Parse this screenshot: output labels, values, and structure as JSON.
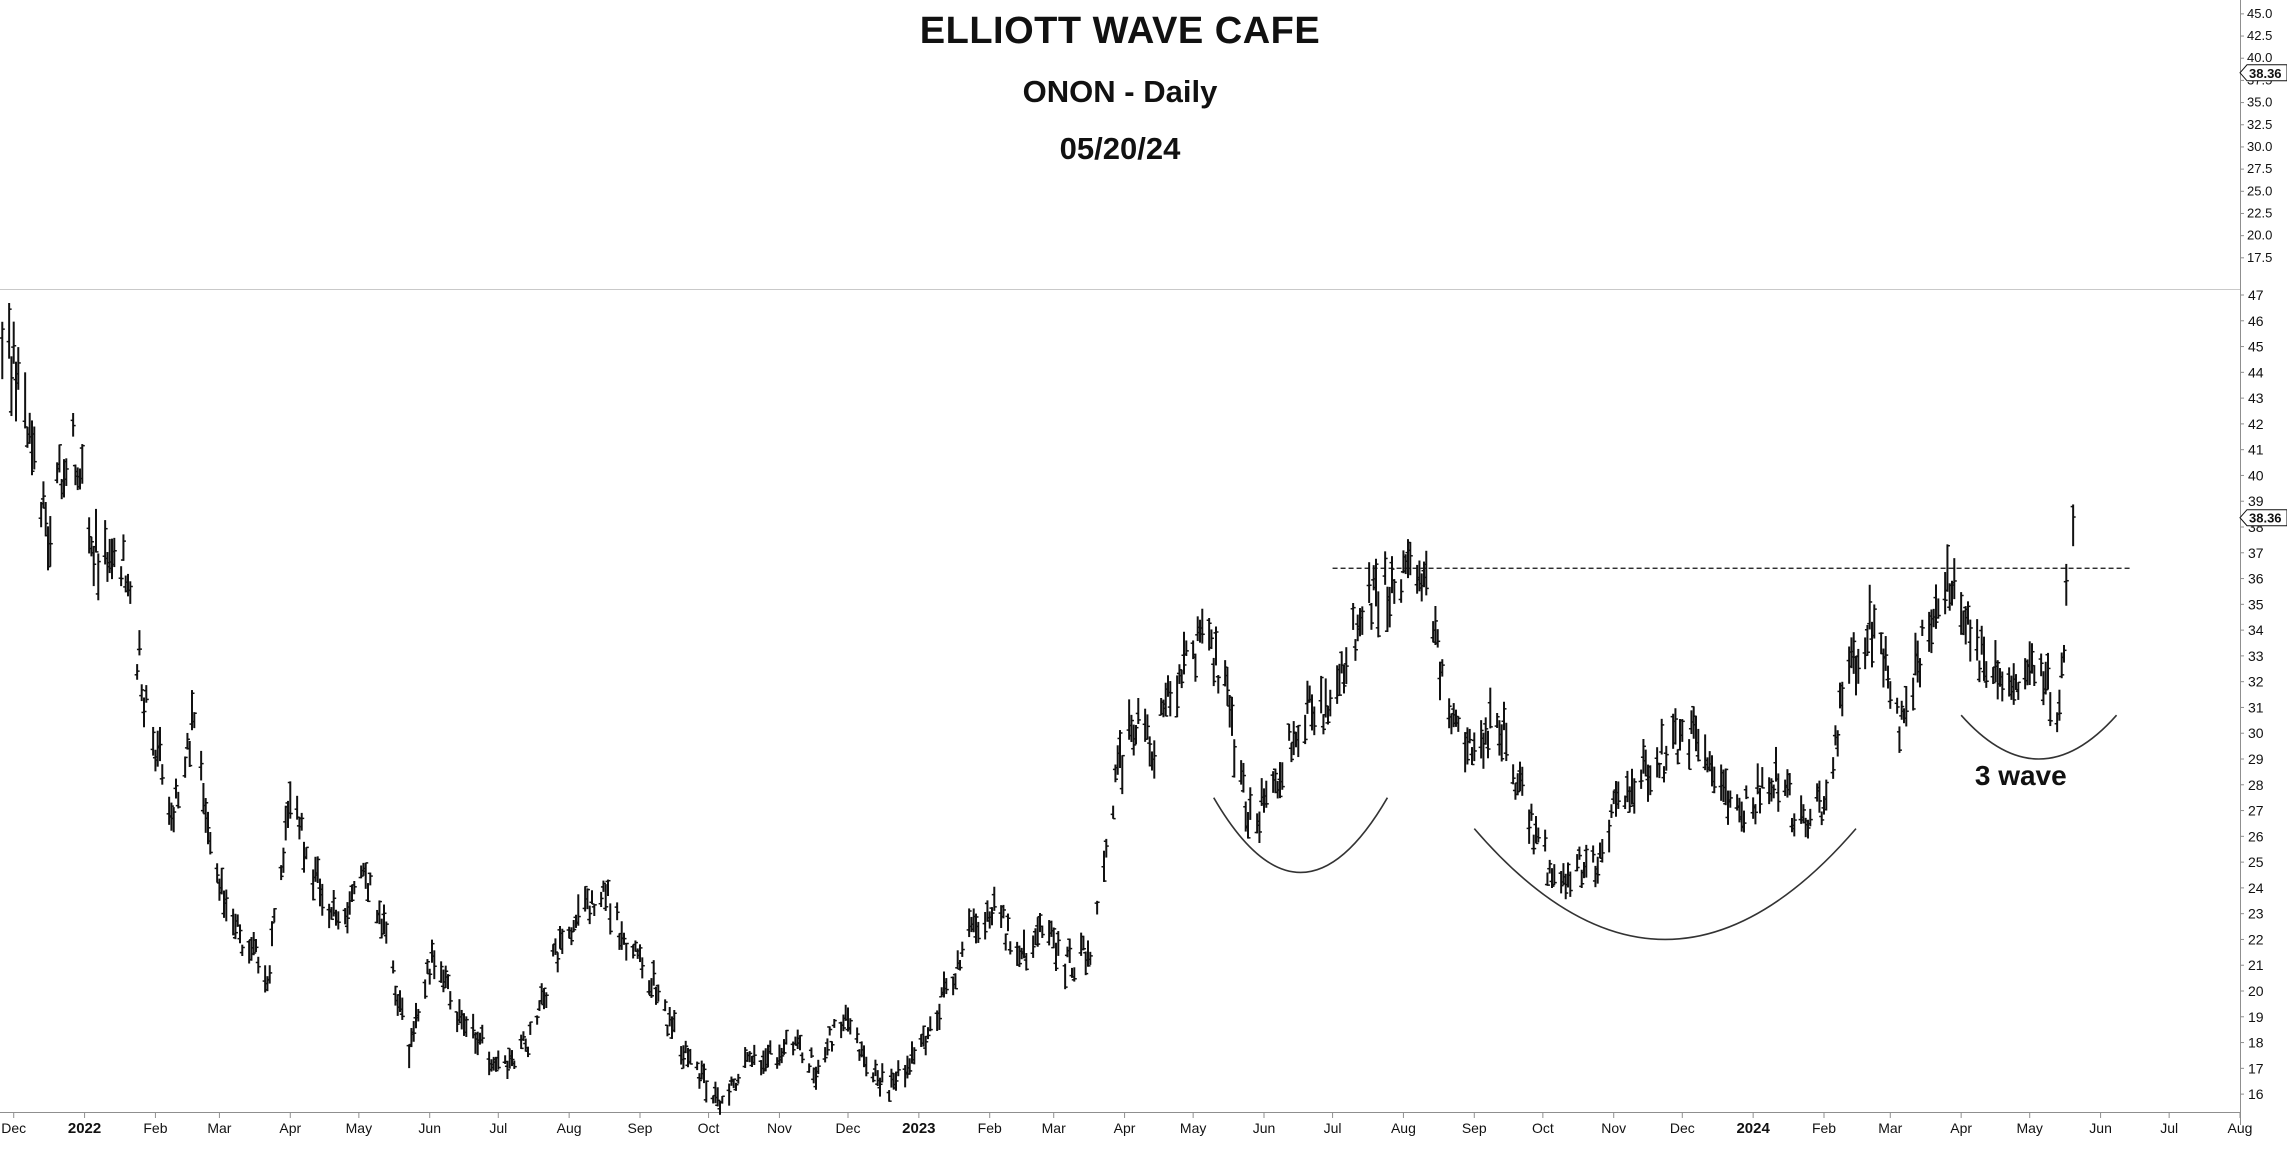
{
  "header": {
    "title": "ELLIOTT WAVE CAFE",
    "subtitle": "ONON - Daily",
    "date": "05/20/24"
  },
  "colors": {
    "background": "#ffffff",
    "bars": "#111111",
    "axis": "#8f8f8f",
    "text": "#111111"
  },
  "chart_data": [
    {
      "type": "scatter",
      "title": "",
      "xlabel": "",
      "ylabel": "",
      "ylim": [
        15,
        46
      ],
      "y_ticks": [
        "45.0",
        "42.5",
        "40.0",
        "37.5",
        "35.0",
        "32.5",
        "30.0",
        "27.5",
        "25.0",
        "22.5",
        "20.0",
        "17.5"
      ],
      "last_price": "38.36",
      "grid": false,
      "x_ticks": [],
      "notes": ""
    },
    {
      "type": "line",
      "title": "",
      "xlabel": "",
      "ylabel": "",
      "ylim": [
        15.5,
        47
      ],
      "x_range": [
        "2021-11-25",
        "2024-08-01"
      ],
      "y_ticks": [
        "47",
        "46",
        "45",
        "44",
        "43",
        "42",
        "41",
        "40",
        "39",
        "38",
        "37",
        "36",
        "35",
        "34",
        "33",
        "32",
        "31",
        "30",
        "29",
        "28",
        "27",
        "26",
        "25",
        "24",
        "23",
        "22",
        "21",
        "20",
        "19",
        "18",
        "17",
        "16"
      ],
      "last_price": "38.36",
      "x_tick_labels": [
        "Dec",
        "2022",
        "Feb",
        "Mar",
        "Apr",
        "May",
        "Jun",
        "Jul",
        "Aug",
        "Sep",
        "Oct",
        "Nov",
        "Dec",
        "2023",
        "Feb",
        "Mar",
        "Apr",
        "May",
        "Jun",
        "Jul",
        "Aug",
        "Sep",
        "Oct",
        "Nov",
        "Dec",
        "2024",
        "Feb",
        "Mar",
        "Apr",
        "May",
        "Jun",
        "Jul",
        "Aug"
      ],
      "x_tick_bold": [
        "2022",
        "2023",
        "2024"
      ],
      "grid": false,
      "series": [
        {
          "x": [
            "2021-11-26",
            "2021-12-06",
            "2021-12-16",
            "2021-12-27",
            "2022-01-06",
            "2022-01-18",
            "2022-01-28",
            "2022-02-08",
            "2022-02-18",
            "2022-03-01",
            "2022-03-11",
            "2022-03-22",
            "2022-04-01",
            "2022-04-12",
            "2022-04-22",
            "2022-05-03",
            "2022-05-12",
            "2022-05-23",
            "2022-06-02",
            "2022-06-13",
            "2022-06-23",
            "2022-07-05",
            "2022-07-14",
            "2022-07-25",
            "2022-08-04",
            "2022-08-15",
            "2022-08-25",
            "2022-09-06",
            "2022-09-15",
            "2022-09-26",
            "2022-10-06",
            "2022-10-17",
            "2022-10-27",
            "2022-11-07",
            "2022-11-17",
            "2022-11-29",
            "2022-12-09",
            "2022-12-20",
            "2023-01-03",
            "2023-01-13",
            "2023-01-25",
            "2023-02-03",
            "2023-02-14",
            "2023-02-24",
            "2023-03-07",
            "2023-03-17",
            "2023-03-23",
            "2023-04-03",
            "2023-04-13",
            "2023-04-24",
            "2023-05-04",
            "2023-05-15",
            "2023-05-25",
            "2023-06-06",
            "2023-06-16",
            "2023-06-28",
            "2023-07-11",
            "2023-07-21",
            "2023-08-01",
            "2023-08-11",
            "2023-08-21",
            "2023-08-31",
            "2023-09-12",
            "2023-09-22",
            "2023-10-03",
            "2023-10-13",
            "2023-10-24",
            "2023-11-03",
            "2023-11-14",
            "2023-11-27",
            "2023-12-07",
            "2023-12-18",
            "2023-12-29",
            "2024-01-10",
            "2024-01-22",
            "2024-02-01",
            "2024-02-12",
            "2024-02-23",
            "2024-03-05",
            "2024-03-15",
            "2024-03-26",
            "2024-04-05",
            "2024-04-16",
            "2024-04-26",
            "2024-05-07",
            "2024-05-13",
            "2024-05-20"
          ],
          "y": [
            45.5,
            43.0,
            38.0,
            41.5,
            37.0,
            36.5,
            31.0,
            27.0,
            30.5,
            24.0,
            22.0,
            20.5,
            27.5,
            24.5,
            22.5,
            24.5,
            22.5,
            17.5,
            21.5,
            19.0,
            18.0,
            17.0,
            18.0,
            21.0,
            23.0,
            24.0,
            22.0,
            20.5,
            18.5,
            17.0,
            15.8,
            17.0,
            17.5,
            18.0,
            17.0,
            19.0,
            17.0,
            16.3,
            18.0,
            20.0,
            22.5,
            23.5,
            21.0,
            22.5,
            21.0,
            21.5,
            25.5,
            30.5,
            29.5,
            32.0,
            33.5,
            32.0,
            26.5,
            27.5,
            30.5,
            31.0,
            34.0,
            35.5,
            36.0,
            35.5,
            30.5,
            29.5,
            30.5,
            27.5,
            25.0,
            24.5,
            25.0,
            27.5,
            28.5,
            29.5,
            30.0,
            28.0,
            27.0,
            28.5,
            26.5,
            27.5,
            32.5,
            34.5,
            30.5,
            33.5,
            35.5,
            34.0,
            32.0,
            32.5,
            32.5,
            30.5,
            38.36
          ]
        }
      ],
      "annotations": [
        {
          "type": "hline",
          "y": 36.4,
          "x_start": "2023-07-01",
          "x_end": "2024-06-15",
          "style": "dashed"
        },
        {
          "type": "arc",
          "x_start": "2023-05-10",
          "x_end": "2023-07-25",
          "y_edge": 27.5,
          "y_bottom": 24.6
        },
        {
          "type": "arc",
          "x_start": "2023-09-01",
          "x_end": "2024-02-15",
          "y_edge": 26.3,
          "y_bottom": 22.0
        },
        {
          "type": "arc",
          "x_start": "2024-04-01",
          "x_end": "2024-06-08",
          "y_edge": 30.7,
          "y_bottom": 29.0
        },
        {
          "type": "text",
          "text": "3 wave",
          "x": "2024-04-07",
          "y": 28.0
        }
      ]
    }
  ]
}
